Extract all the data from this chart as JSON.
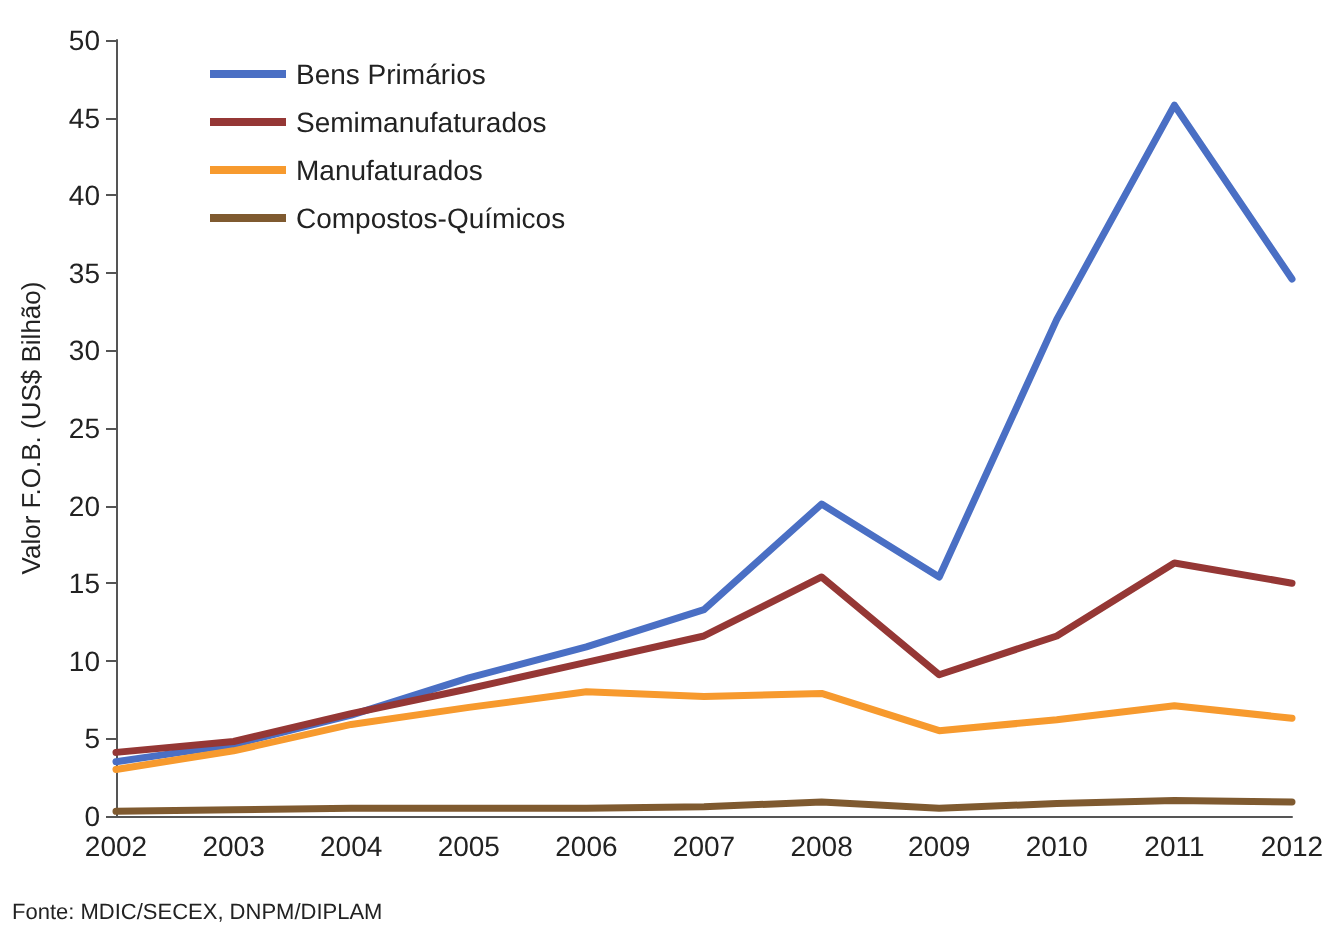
{
  "chart_data": {
    "type": "line",
    "ylabel": "Valor F.O.B. (US$ Bilhão)",
    "categories": [
      "2002",
      "2003",
      "2004",
      "2005",
      "2006",
      "2007",
      "2008",
      "2009",
      "2010",
      "2011",
      "2012"
    ],
    "series": [
      {
        "name": "Bens Primários",
        "color": "#4a6fc4",
        "values": [
          3.5,
          4.6,
          6.5,
          8.9,
          10.9,
          13.3,
          20.1,
          15.4,
          32,
          45.8,
          34.6
        ]
      },
      {
        "name": "Semimanufaturados",
        "color": "#953735",
        "values": [
          4.1,
          4.8,
          6.6,
          8.2,
          9.9,
          11.6,
          15.4,
          9.1,
          11.6,
          16.3,
          15
        ]
      },
      {
        "name": "Manufaturados",
        "color": "#f79a2e",
        "values": [
          3,
          4.2,
          5.9,
          7,
          8,
          7.7,
          7.9,
          5.5,
          6.2,
          7.1,
          6.3
        ]
      },
      {
        "name": "Compostos-Químicos",
        "color": "#7f5a30",
        "values": [
          0.3,
          0.4,
          0.5,
          0.5,
          0.5,
          0.6,
          0.9,
          0.5,
          0.8,
          1,
          0.9
        ]
      }
    ],
    "ylim": [
      0,
      50
    ],
    "yticks": [
      0,
      5,
      10,
      15,
      20,
      25,
      30,
      35,
      40,
      45,
      50
    ],
    "grid": false,
    "legend": "top left",
    "marker": "none",
    "line_style": "solid",
    "annotations": [
      "Fonte: MDIC/SECEX, DNPM/DIPLAM"
    ]
  }
}
